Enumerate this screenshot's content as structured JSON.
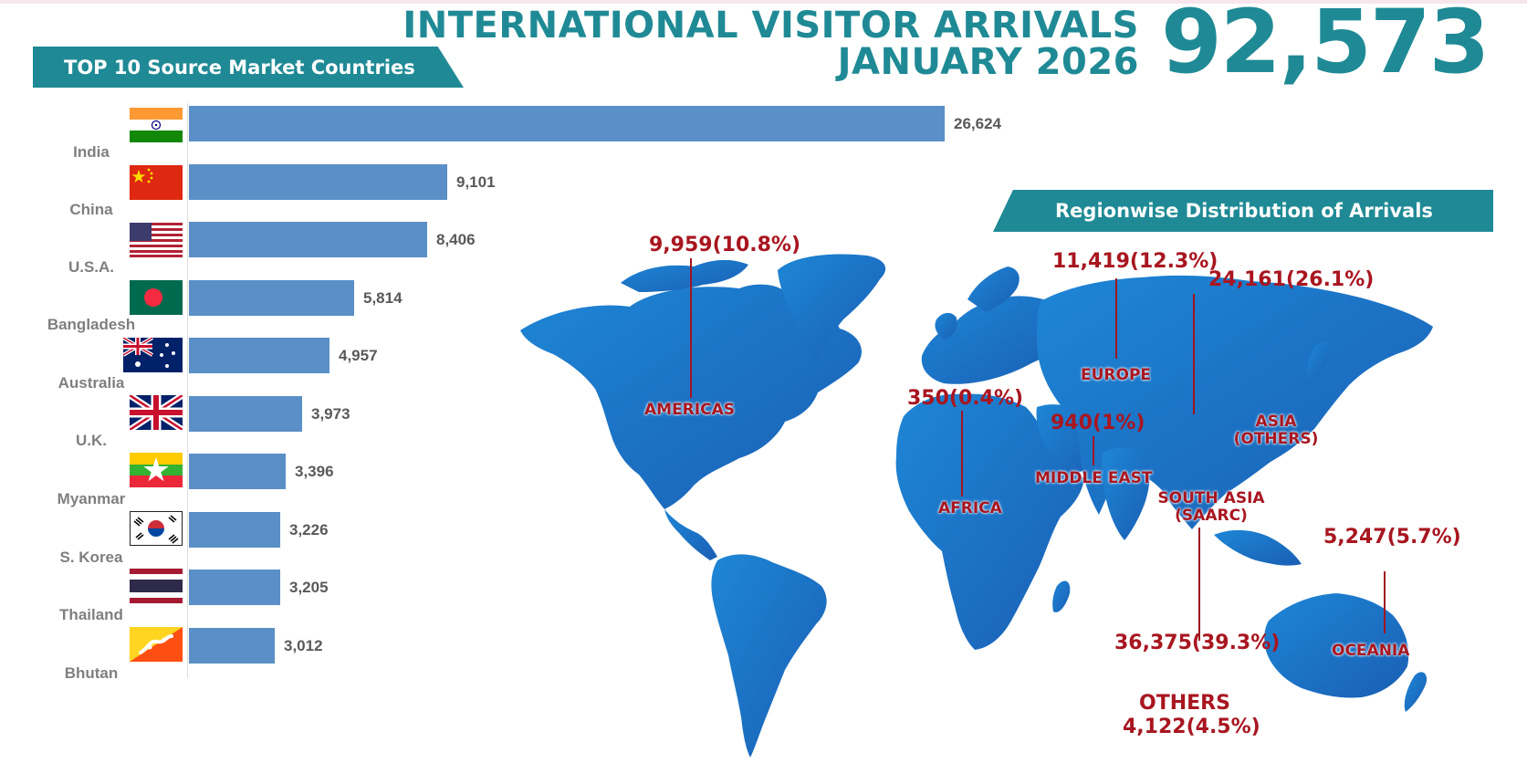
{
  "header": {
    "title_line1": "INTERNATIONAL VISITOR ARRIVALS",
    "title_line2": "JANUARY 2026",
    "total": "92,573"
  },
  "left_banner": "TOP 10 Source Market Countries",
  "right_banner": "Regionwise Distribution of Arrivals",
  "colors": {
    "teal": "#1f8a95",
    "bar": "#5b8fc7",
    "map": "#1e6fc4",
    "label": "#a81620"
  },
  "chart_data": [
    {
      "type": "bar",
      "orientation": "horizontal",
      "title": "TOP 10 Source Market Countries",
      "categories": [
        "India",
        "China",
        "U.S.A.",
        "Bangladesh",
        "Australia",
        "U.K.",
        "Myanmar",
        "S. Korea",
        "Thailand",
        "Bhutan"
      ],
      "values": [
        26624,
        9101,
        8406,
        5814,
        4957,
        3973,
        3396,
        3226,
        3205,
        3012
      ],
      "value_labels": [
        "26,624",
        "9,101",
        "8,406",
        "5,814",
        "4,957",
        "3,973",
        "3,396",
        "3,226",
        "3,205",
        "3,012"
      ],
      "flag_icons": [
        "india-flag-icon",
        "china-flag-icon",
        "usa-flag-icon",
        "bangladesh-flag-icon",
        "australia-flag-icon",
        "uk-flag-icon",
        "myanmar-flag-icon",
        "south-korea-flag-icon",
        "thailand-flag-icon",
        "bhutan-flag-icon"
      ],
      "grid": false
    },
    {
      "type": "table",
      "title": "Regionwise Distribution of Arrivals",
      "regions": [
        {
          "name": "AMERICAS",
          "value": 9959,
          "percent": 10.8,
          "label": "9,959(10.8%)"
        },
        {
          "name": "EUROPE",
          "value": 11419,
          "percent": 12.3,
          "label": "11,419(12.3%)"
        },
        {
          "name": "ASIA (OTHERS)",
          "value": 24161,
          "percent": 26.1,
          "label": "24,161(26.1%)"
        },
        {
          "name": "AFRICA",
          "value": 350,
          "percent": 0.4,
          "label": "350(0.4%)"
        },
        {
          "name": "MIDDLE EAST",
          "value": 940,
          "percent": 1,
          "label": "940(1%)"
        },
        {
          "name": "SOUTH ASIA (SAARC)",
          "value": 36375,
          "percent": 39.3,
          "label": "36,375(39.3%)"
        },
        {
          "name": "OCEANIA",
          "value": 5247,
          "percent": 5.7,
          "label": "5,247(5.7%)"
        },
        {
          "name": "OTHERS",
          "value": 4122,
          "percent": 4.5,
          "label": "4,122(4.5%)"
        }
      ]
    }
  ]
}
